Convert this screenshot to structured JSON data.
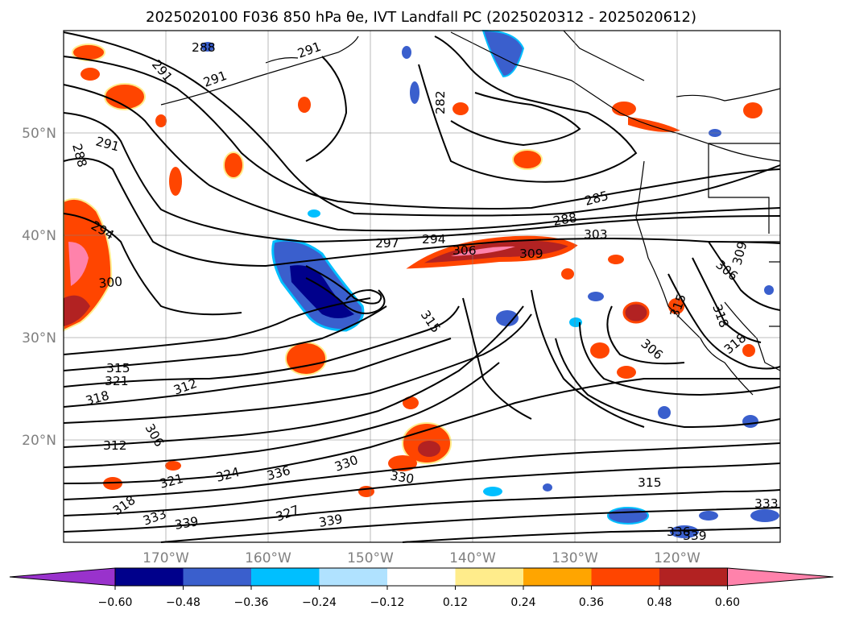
{
  "title": "2025020100 F036 850 hPa θe, IVT Landfall PC (2025020312 - 2025020612)",
  "map": {
    "lat_labels": [
      "50°N",
      "40°N",
      "30°N",
      "20°N"
    ],
    "lon_labels": [
      "170°W",
      "160°W",
      "150°W",
      "140°W",
      "130°W",
      "120°W"
    ],
    "contour_labels": [
      "288",
      "291",
      "291",
      "291",
      "288",
      "282",
      "291",
      "294",
      "300",
      "297",
      "294",
      "306",
      "309",
      "303",
      "285",
      "288",
      "315",
      "306",
      "312",
      "318",
      "321",
      "315",
      "312",
      "306",
      "324",
      "336",
      "330",
      "330",
      "327",
      "339",
      "333",
      "339",
      "318",
      "321",
      "315",
      "336",
      "339",
      "333",
      "318",
      "315",
      "306",
      "309",
      "318"
    ],
    "colors": {
      "negative": [
        "#9932cc",
        "#00008b",
        "#3a5fcd",
        "#00bfff",
        "#b0e2ff"
      ],
      "positive": [
        "#ffec8b",
        "#ffa500",
        "#ff4500",
        "#b22222",
        "#ff82ab"
      ]
    }
  },
  "colorbar": {
    "ticks": [
      "−0.60",
      "−0.48",
      "−0.36",
      "−0.24",
      "−0.12",
      "0.12",
      "0.24",
      "0.36",
      "0.48",
      "0.60"
    ],
    "segment_colors": [
      "#9932cc",
      "#00008b",
      "#3a5fcd",
      "#00bfff",
      "#b0e2ff",
      "#ffffff",
      "#ffec8b",
      "#ffa500",
      "#ff4500",
      "#b22222",
      "#ff82ab"
    ]
  }
}
